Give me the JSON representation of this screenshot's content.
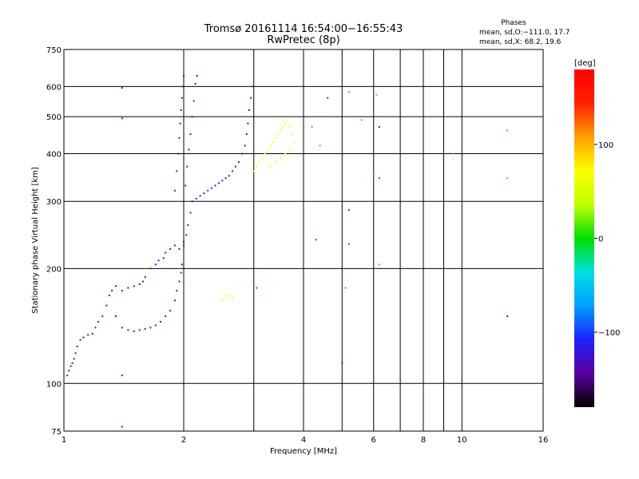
{
  "chart_data": {
    "type": "scatter",
    "title": "Tromsø 20161114 16:54:00−16:55:43",
    "subtitle": "RwPretec (8p)",
    "xlabel": "Frequency [MHz]",
    "ylabel": "Stationary phase Virtual Height [km]",
    "x_scale": "log",
    "y_scale": "log",
    "xlim": [
      1,
      16
    ],
    "ylim": [
      75,
      750
    ],
    "x_ticks": [
      1,
      2,
      4,
      6,
      8,
      10,
      16
    ],
    "x_tick_labels": [
      "1",
      "2",
      "4",
      "6",
      "8",
      "10",
      "16"
    ],
    "x_grid": [
      1,
      2,
      3,
      4,
      5,
      6,
      7,
      8,
      9,
      10,
      16
    ],
    "y_ticks": [
      75,
      100,
      200,
      300,
      400,
      500,
      600,
      750
    ],
    "y_tick_labels": [
      "75",
      "100",
      "200",
      "300",
      "400",
      "500",
      "600",
      "750"
    ],
    "y_grid": [
      100,
      200,
      300,
      400,
      500,
      600
    ],
    "grid": true,
    "phases_box": {
      "heading": "Phases",
      "line1": "mean, sd,O:−111.0, 17.7",
      "line2": "mean, sd,X:  68.2, 19.6"
    },
    "colorbar": {
      "label": "[deg]",
      "range": [
        -180,
        180
      ],
      "ticks": [
        100,
        0,
        -100
      ],
      "tick_labels": [
        "100",
        "0",
        "−100"
      ],
      "colors": [
        "#000000",
        "#5a00a0",
        "#2020ff",
        "#00a0ff",
        "#00e0e0",
        "#00e000",
        "#c0ff00",
        "#ffff00",
        "#ffa000",
        "#ff2000",
        "#ff0000"
      ]
    },
    "series": [
      {
        "trace": "o-mode",
        "phase_deg": -115,
        "points": [
          [
            1.02,
            105
          ],
          [
            1.03,
            108
          ],
          [
            1.04,
            111
          ],
          [
            1.05,
            113
          ],
          [
            1.06,
            116
          ],
          [
            1.07,
            120
          ],
          [
            1.08,
            125
          ],
          [
            1.1,
            130
          ],
          [
            1.12,
            132
          ],
          [
            1.15,
            134
          ],
          [
            1.18,
            135
          ],
          [
            1.2,
            140
          ],
          [
            1.22,
            145
          ],
          [
            1.25,
            150
          ],
          [
            1.28,
            160
          ],
          [
            1.3,
            170
          ],
          [
            1.32,
            175
          ],
          [
            1.35,
            180
          ],
          [
            1.4,
            175
          ],
          [
            1.45,
            178
          ],
          [
            1.5,
            180
          ],
          [
            1.55,
            182
          ],
          [
            1.58,
            185
          ],
          [
            1.6,
            190
          ],
          [
            1.65,
            200
          ],
          [
            1.7,
            205
          ],
          [
            1.73,
            210
          ],
          [
            1.78,
            213
          ],
          [
            1.8,
            220
          ],
          [
            1.85,
            225
          ],
          [
            1.9,
            230
          ],
          [
            1.95,
            225
          ],
          [
            2.0,
            235
          ],
          [
            2.03,
            245
          ],
          [
            2.05,
            260
          ],
          [
            2.08,
            280
          ],
          [
            2.1,
            300
          ],
          [
            2.15,
            305
          ],
          [
            2.2,
            310
          ],
          [
            2.25,
            315
          ],
          [
            2.3,
            320
          ],
          [
            2.35,
            325
          ],
          [
            2.4,
            330
          ],
          [
            2.45,
            335
          ],
          [
            2.5,
            340
          ],
          [
            2.55,
            345
          ],
          [
            2.6,
            350
          ],
          [
            2.65,
            360
          ],
          [
            2.7,
            370
          ],
          [
            2.75,
            380
          ],
          [
            2.8,
            400
          ],
          [
            2.85,
            420
          ],
          [
            2.88,
            450
          ],
          [
            2.9,
            480
          ],
          [
            2.92,
            520
          ],
          [
            2.95,
            560
          ],
          [
            2.98,
            600
          ]
        ]
      },
      {
        "trace": "o-mode lower band",
        "phase_deg": -118,
        "points": [
          [
            1.35,
            150
          ],
          [
            1.4,
            140
          ],
          [
            1.45,
            138
          ],
          [
            1.5,
            137
          ],
          [
            1.55,
            138
          ],
          [
            1.6,
            139
          ],
          [
            1.65,
            140
          ],
          [
            1.7,
            142
          ],
          [
            1.75,
            145
          ],
          [
            1.8,
            150
          ],
          [
            1.85,
            155
          ],
          [
            1.9,
            165
          ],
          [
            1.92,
            175
          ],
          [
            1.95,
            185
          ],
          [
            1.97,
            195
          ],
          [
            1.98,
            205
          ],
          [
            2.0,
            230
          ]
        ]
      },
      {
        "trace": "o-mode F-region column",
        "phase_deg": -110,
        "points": [
          [
            1.9,
            320
          ],
          [
            1.92,
            360
          ],
          [
            1.94,
            400
          ],
          [
            1.95,
            440
          ],
          [
            1.96,
            480
          ],
          [
            1.97,
            520
          ],
          [
            1.98,
            560
          ],
          [
            1.99,
            600
          ],
          [
            2.0,
            640
          ],
          [
            2.02,
            330
          ],
          [
            2.04,
            370
          ],
          [
            2.06,
            410
          ],
          [
            2.08,
            450
          ],
          [
            2.1,
            500
          ],
          [
            2.12,
            550
          ],
          [
            2.14,
            610
          ],
          [
            2.16,
            640
          ]
        ]
      },
      {
        "trace": "x-mode",
        "phase_deg": 70,
        "points": [
          [
            3.0,
            360
          ],
          [
            3.05,
            370
          ],
          [
            3.1,
            380
          ],
          [
            3.15,
            390
          ],
          [
            3.2,
            400
          ],
          [
            3.25,
            410
          ],
          [
            3.3,
            420
          ],
          [
            3.35,
            430
          ],
          [
            3.4,
            440
          ],
          [
            3.45,
            450
          ],
          [
            3.5,
            460
          ],
          [
            3.55,
            470
          ],
          [
            3.6,
            480
          ],
          [
            3.65,
            490
          ],
          [
            3.7,
            470
          ],
          [
            3.75,
            450
          ],
          [
            3.8,
            430
          ],
          [
            3.3,
            370
          ],
          [
            3.4,
            380
          ],
          [
            3.5,
            390
          ],
          [
            3.6,
            400
          ],
          [
            3.7,
            410
          ],
          [
            2.5,
            165
          ],
          [
            2.55,
            168
          ],
          [
            2.6,
            170
          ],
          [
            2.65,
            167
          ]
        ]
      }
    ],
    "outliers": [
      {
        "x": 1.4,
        "y": 595,
        "phase_deg": -115
      },
      {
        "x": 1.4,
        "y": 495,
        "phase_deg": -115
      },
      {
        "x": 1.4,
        "y": 105,
        "phase_deg": -115
      },
      {
        "x": 1.4,
        "y": 77,
        "phase_deg": -115
      },
      {
        "x": 4.6,
        "y": 560,
        "phase_deg": -100
      },
      {
        "x": 5.2,
        "y": 580,
        "phase_deg": 120
      },
      {
        "x": 5.6,
        "y": 490,
        "phase_deg": 120
      },
      {
        "x": 6.2,
        "y": 470,
        "phase_deg": -110
      },
      {
        "x": 6.1,
        "y": 570,
        "phase_deg": 20
      },
      {
        "x": 5.2,
        "y": 285,
        "phase_deg": -100
      },
      {
        "x": 5.2,
        "y": 232,
        "phase_deg": -90
      },
      {
        "x": 4.3,
        "y": 238,
        "phase_deg": -90
      },
      {
        "x": 6.2,
        "y": 205,
        "phase_deg": 120
      },
      {
        "x": 5.1,
        "y": 178,
        "phase_deg": 120
      },
      {
        "x": 5.0,
        "y": 113,
        "phase_deg": -110
      },
      {
        "x": 9.5,
        "y": 400,
        "phase_deg": 0
      },
      {
        "x": 13.0,
        "y": 460,
        "phase_deg": 120
      },
      {
        "x": 13.0,
        "y": 345,
        "phase_deg": 120
      },
      {
        "x": 13.0,
        "y": 150,
        "phase_deg": -110
      },
      {
        "x": 6.0,
        "y": 350,
        "phase_deg": 120
      },
      {
        "x": 6.2,
        "y": 345,
        "phase_deg": -90
      },
      {
        "x": 3.05,
        "y": 178,
        "phase_deg": 160
      },
      {
        "x": 3.0,
        "y": 182,
        "phase_deg": 130
      },
      {
        "x": 4.4,
        "y": 420,
        "phase_deg": 120
      },
      {
        "x": 4.2,
        "y": 470,
        "phase_deg": 120
      }
    ]
  }
}
